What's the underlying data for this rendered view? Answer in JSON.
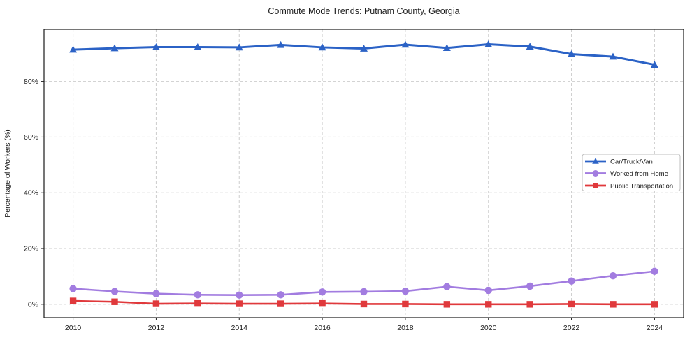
{
  "figure": {
    "title": "Commute Mode Trends: Putnam County, Georgia"
  },
  "chart_data": {
    "type": "line",
    "title": "Commute Mode Trends: Putnam County, Georgia",
    "xlabel": "",
    "ylabel": "Percentage of Workers (%)",
    "x": [
      2010,
      2011,
      2012,
      2013,
      2014,
      2015,
      2016,
      2017,
      2018,
      2019,
      2020,
      2021,
      2022,
      2023,
      2024
    ],
    "xticks": [
      2010,
      2012,
      2014,
      2016,
      2018,
      2020,
      2022,
      2024
    ],
    "yticks": [
      0,
      20,
      40,
      60,
      80
    ],
    "ytick_suffix": "%",
    "xlim": [
      2009.3,
      2024.7
    ],
    "ylim": [
      -4.8,
      98.7
    ],
    "grid": true,
    "grid_color": "#cdcdcd",
    "spine_color": "#1a1a1a",
    "legend_position": "center-right",
    "series": [
      {
        "name": "Car/Truck/Van",
        "color": "#2b62c6",
        "marker": "triangle",
        "values": [
          91.4,
          91.9,
          92.3,
          92.3,
          92.2,
          93.1,
          92.2,
          91.8,
          93.2,
          92.0,
          93.3,
          92.5,
          89.8,
          88.9,
          86.0
        ]
      },
      {
        "name": "Worked from Home",
        "color": "#a27ce0",
        "marker": "circle",
        "values": [
          5.6,
          4.6,
          3.8,
          3.4,
          3.3,
          3.4,
          4.4,
          4.5,
          4.7,
          6.3,
          5.0,
          6.5,
          8.3,
          10.2,
          11.8
        ]
      },
      {
        "name": "Public Transportation",
        "color": "#e0393c",
        "marker": "square",
        "values": [
          1.2,
          0.9,
          0.2,
          0.3,
          0.2,
          0.2,
          0.3,
          0.1,
          0.1,
          0.0,
          0.0,
          0.0,
          0.1,
          0.0,
          0.0
        ]
      }
    ]
  }
}
